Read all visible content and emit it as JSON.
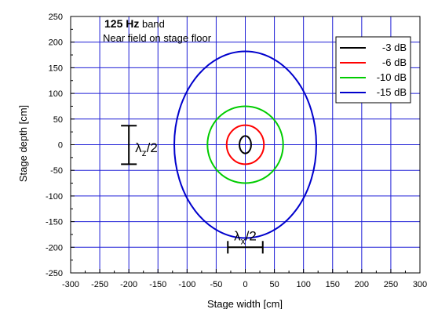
{
  "chart_data": {
    "type": "line",
    "title_bold": "125 Hz",
    "title_rest": " band",
    "subtitle": "Near field on stage floor",
    "xlabel": "Stage width [cm]",
    "ylabel": "Stage depth [cm]",
    "xlim": [
      -300,
      300
    ],
    "ylim": [
      -250,
      250
    ],
    "xticks": [
      -300,
      -250,
      -200,
      -150,
      -100,
      -50,
      0,
      50,
      100,
      150,
      200,
      250,
      300
    ],
    "yticks": [
      -250,
      -200,
      -150,
      -100,
      -50,
      0,
      50,
      100,
      150,
      200,
      250
    ],
    "grid": true,
    "legend_position": "top-right",
    "series": [
      {
        "name": "-3 dB",
        "color": "#000000",
        "shape": "ellipse",
        "center": [
          0,
          0
        ],
        "semi_axis_x": 10,
        "semi_axis_y": 17
      },
      {
        "name": "-6 dB",
        "color": "#ff0000",
        "shape": "ellipse",
        "center": [
          0,
          0
        ],
        "semi_axis_x": 32,
        "semi_axis_y": 38
      },
      {
        "name": "-10 dB",
        "color": "#00cc00",
        "shape": "ellipse",
        "center": [
          0,
          0
        ],
        "semi_axis_x": 65,
        "semi_axis_y": 75
      },
      {
        "name": "-15 dB",
        "color": "#0000cc",
        "shape": "ellipse",
        "center": [
          0,
          0
        ],
        "semi_axis_x": 122,
        "semi_axis_y": 182
      }
    ],
    "annotations": [
      {
        "symbol": "λ",
        "subscript": "z",
        "suffix": "/2",
        "orientation": "vertical",
        "from": [
          -200,
          -38
        ],
        "to": [
          -200,
          37
        ]
      },
      {
        "symbol": "λ",
        "subscript": "x",
        "suffix": "/2",
        "orientation": "horizontal",
        "from": [
          -30,
          -200
        ],
        "to": [
          30,
          -200
        ]
      }
    ]
  }
}
